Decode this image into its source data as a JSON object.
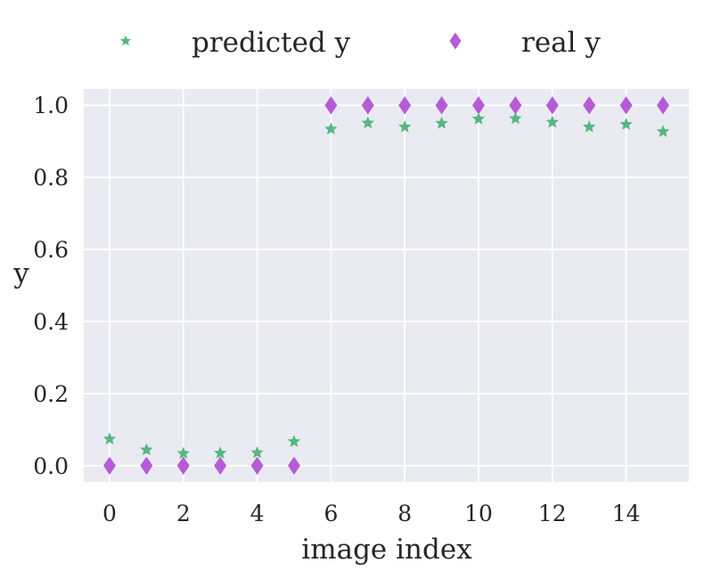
{
  "chart_data": {
    "type": "scatter",
    "title": "",
    "xlabel": "image index",
    "ylabel": "y",
    "xlim": [
      -0.7,
      15.7
    ],
    "ylim": [
      -0.045,
      1.045
    ],
    "xticks": [
      0,
      2,
      4,
      6,
      8,
      10,
      12,
      14
    ],
    "xtick_labels": [
      "0",
      "2",
      "4",
      "6",
      "8",
      "10",
      "12",
      "14"
    ],
    "yticks": [
      0.0,
      0.2,
      0.4,
      0.6,
      0.8,
      1.0
    ],
    "ytick_labels": [
      "0.0",
      "0.2",
      "0.4",
      "0.6",
      "0.8",
      "1.0"
    ],
    "grid": true,
    "legend_position": "top",
    "x": [
      0,
      1,
      2,
      3,
      4,
      5,
      6,
      7,
      8,
      9,
      10,
      11,
      12,
      13,
      14,
      15
    ],
    "series": [
      {
        "name": "predicted y",
        "marker": "star",
        "color": "#55b882",
        "values": [
          0.074,
          0.044,
          0.034,
          0.035,
          0.036,
          0.067,
          0.934,
          0.951,
          0.94,
          0.95,
          0.962,
          0.963,
          0.953,
          0.94,
          0.947,
          0.927
        ]
      },
      {
        "name": "real y",
        "marker": "diamond",
        "color": "#b65bd6",
        "values": [
          0,
          0,
          0,
          0,
          0,
          0,
          1,
          1,
          1,
          1,
          1,
          1,
          1,
          1,
          1,
          1
        ]
      }
    ]
  },
  "colors": {
    "plot_background": "#eaeaf2",
    "grid": "#ffffff",
    "text": "#262626"
  }
}
